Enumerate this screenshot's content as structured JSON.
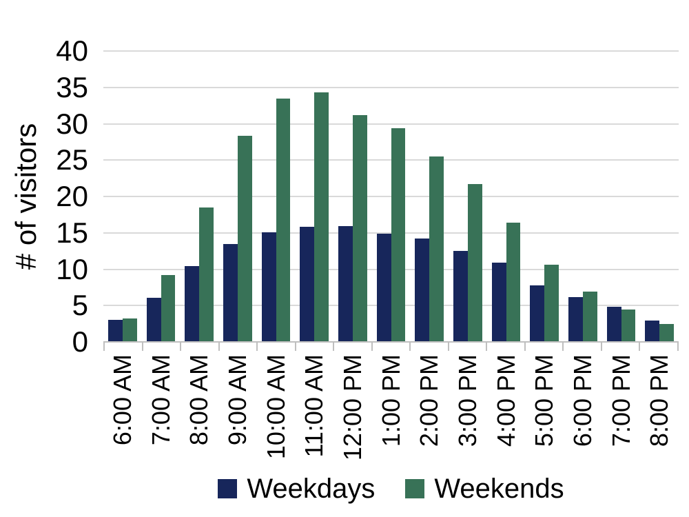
{
  "chart_data": {
    "type": "bar",
    "title": "",
    "ylabel": "# of visitors",
    "xlabel": "",
    "categories": [
      "6:00 AM",
      "7:00 AM",
      "8:00 AM",
      "9:00 AM",
      "10:00 AM",
      "11:00 AM",
      "12:00 PM",
      "1:00 PM",
      "2:00 PM",
      "3:00 PM",
      "4:00 PM",
      "5:00 PM",
      "6:00 PM",
      "7:00 PM",
      "8:00 PM"
    ],
    "series": [
      {
        "name": "Weekdays",
        "color": "#17265B",
        "values": [
          3.0,
          6.1,
          10.4,
          13.5,
          15.1,
          15.8,
          15.9,
          14.9,
          14.2,
          12.5,
          10.9,
          7.8,
          6.2,
          4.8,
          2.9
        ]
      },
      {
        "name": "Weekends",
        "color": "#387257",
        "values": [
          3.2,
          9.2,
          18.5,
          28.3,
          33.5,
          34.3,
          31.2,
          29.4,
          25.5,
          21.7,
          16.4,
          10.6,
          6.9,
          4.5,
          2.5
        ]
      }
    ],
    "ylim": [
      0,
      40
    ],
    "yticks": [
      0,
      5,
      10,
      15,
      20,
      25,
      30,
      35,
      40
    ],
    "grid": true,
    "legend_position": "bottom",
    "colors": {
      "gridline": "#D9D9D9",
      "axis": "#BFBFBF",
      "text": "#000000",
      "background": "#FFFFFF"
    }
  }
}
